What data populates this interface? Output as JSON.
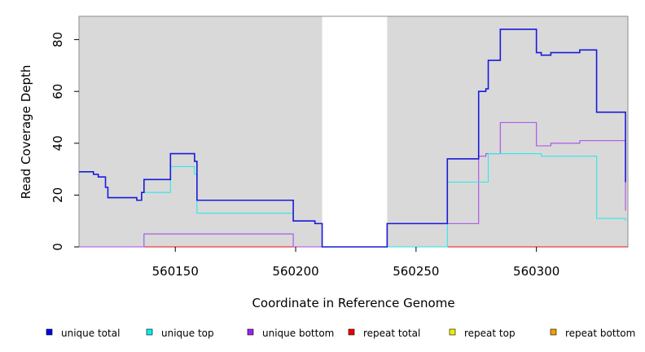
{
  "chart_data": {
    "type": "line",
    "title": "",
    "xlabel": "Coordinate in Reference Genome",
    "ylabel": "Read Coverage Depth",
    "xlim": [
      560110,
      560338
    ],
    "ylim": [
      0,
      89
    ],
    "x_ticks": [
      560150,
      560200,
      560250,
      560300
    ],
    "y_ticks": [
      0,
      20,
      40,
      60,
      80
    ],
    "shaded_regions": [
      [
        560110,
        560211
      ],
      [
        560238,
        560338
      ]
    ],
    "series": [
      {
        "name": "unique total",
        "color": "#1a1adb",
        "points": [
          [
            560110,
            29
          ],
          [
            560116,
            29
          ],
          [
            560116,
            28
          ],
          [
            560118,
            28
          ],
          [
            560118,
            27
          ],
          [
            560121,
            27
          ],
          [
            560121,
            23
          ],
          [
            560122,
            23
          ],
          [
            560122,
            19
          ],
          [
            560134,
            19
          ],
          [
            560134,
            18
          ],
          [
            560136,
            18
          ],
          [
            560136,
            21
          ],
          [
            560137,
            21
          ],
          [
            560137,
            26
          ],
          [
            560148,
            26
          ],
          [
            560148,
            36
          ],
          [
            560158,
            36
          ],
          [
            560158,
            33
          ],
          [
            560159,
            33
          ],
          [
            560159,
            18
          ],
          [
            560199,
            18
          ],
          [
            560199,
            10
          ],
          [
            560208,
            10
          ],
          [
            560208,
            9
          ],
          [
            560211,
            9
          ],
          [
            560211,
            0
          ],
          [
            560238,
            0
          ],
          [
            560238,
            9
          ],
          [
            560263,
            9
          ],
          [
            560263,
            34
          ],
          [
            560276,
            34
          ],
          [
            560276,
            60
          ],
          [
            560279,
            60
          ],
          [
            560279,
            61
          ],
          [
            560280,
            61
          ],
          [
            560280,
            72
          ],
          [
            560285,
            72
          ],
          [
            560285,
            84
          ],
          [
            560300,
            84
          ],
          [
            560300,
            75
          ],
          [
            560302,
            75
          ],
          [
            560302,
            74
          ],
          [
            560306,
            74
          ],
          [
            560306,
            75
          ],
          [
            560318,
            75
          ],
          [
            560318,
            76
          ],
          [
            560325,
            76
          ],
          [
            560325,
            52
          ],
          [
            560337,
            52
          ],
          [
            560337,
            25
          ]
        ]
      },
      {
        "name": "unique top",
        "color": "#2ee8e8",
        "points": [
          [
            560110,
            29
          ],
          [
            560116,
            29
          ],
          [
            560116,
            28
          ],
          [
            560118,
            28
          ],
          [
            560118,
            27
          ],
          [
            560121,
            27
          ],
          [
            560121,
            23
          ],
          [
            560122,
            23
          ],
          [
            560122,
            19
          ],
          [
            560134,
            19
          ],
          [
            560134,
            18
          ],
          [
            560136,
            18
          ],
          [
            560136,
            21
          ],
          [
            560148,
            21
          ],
          [
            560148,
            31
          ],
          [
            560158,
            31
          ],
          [
            560158,
            28
          ],
          [
            560159,
            28
          ],
          [
            560159,
            13
          ],
          [
            560199,
            13
          ],
          [
            560199,
            10
          ],
          [
            560208,
            10
          ],
          [
            560208,
            9
          ],
          [
            560211,
            9
          ],
          [
            560211,
            0
          ],
          [
            560263,
            0
          ],
          [
            560263,
            25
          ],
          [
            560280,
            25
          ],
          [
            560280,
            36
          ],
          [
            560302,
            36
          ],
          [
            560302,
            35
          ],
          [
            560325,
            35
          ],
          [
            560325,
            11
          ],
          [
            560337,
            11
          ],
          [
            560337,
            10
          ]
        ]
      },
      {
        "name": "unique bottom",
        "color": "#a84ee8",
        "points": [
          [
            560110,
            0
          ],
          [
            560137,
            0
          ],
          [
            560137,
            5
          ],
          [
            560199,
            5
          ],
          [
            560199,
            0
          ],
          [
            560238,
            0
          ],
          [
            560238,
            9
          ],
          [
            560276,
            9
          ],
          [
            560276,
            35
          ],
          [
            560279,
            35
          ],
          [
            560279,
            36
          ],
          [
            560285,
            36
          ],
          [
            560285,
            48
          ],
          [
            560300,
            48
          ],
          [
            560300,
            39
          ],
          [
            560306,
            39
          ],
          [
            560306,
            40
          ],
          [
            560318,
            40
          ],
          [
            560318,
            41
          ],
          [
            560337,
            41
          ],
          [
            560337,
            14
          ]
        ]
      },
      {
        "name": "repeat total",
        "color": "#ee1111",
        "points": [
          [
            560110,
            0
          ],
          [
            560338,
            0
          ]
        ]
      },
      {
        "name": "repeat top",
        "color": "#eeee11",
        "points": [
          [
            560110,
            0
          ],
          [
            560338,
            0
          ]
        ]
      },
      {
        "name": "repeat bottom",
        "color": "#f0a000",
        "points": [
          [
            560110,
            0
          ],
          [
            560338,
            0
          ]
        ]
      }
    ],
    "legend": {
      "placement": "bottom",
      "items": [
        {
          "label": "unique total",
          "color": "#0000ee"
        },
        {
          "label": "unique top",
          "color": "#00eeee"
        },
        {
          "label": "unique bottom",
          "color": "#a020f0"
        },
        {
          "label": "repeat total",
          "color": "#ee0000"
        },
        {
          "label": "repeat top",
          "color": "#eeee00"
        },
        {
          "label": "repeat bottom",
          "color": "#f0a000"
        }
      ]
    }
  }
}
